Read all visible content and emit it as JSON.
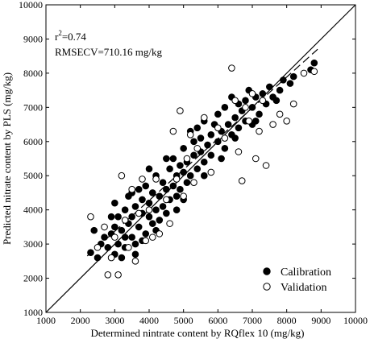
{
  "chart_data": {
    "type": "scatter",
    "title": "",
    "xlabel": "Determined nintrate content by RQflex 10 (mg/kg)",
    "ylabel": "Predicted nitrate content by PLS (mg/kg)",
    "xlim": [
      1000,
      10000
    ],
    "ylim": [
      1000,
      10000
    ],
    "xticks": [
      1000,
      2000,
      3000,
      4000,
      5000,
      6000,
      7000,
      8000,
      9000,
      10000
    ],
    "yticks": [
      1000,
      2000,
      3000,
      4000,
      5000,
      6000,
      7000,
      8000,
      9000,
      10000
    ],
    "grid": false,
    "legend_position": "bottom-right",
    "annotations": {
      "r2_base": "r",
      "r2_sup": "2",
      "r2_value": "=0.74",
      "rmsecv": "RMSECV=710.16 mg/kg"
    },
    "reference_lines": [
      {
        "style": "solid",
        "x": [
          1000,
          10000
        ],
        "y": [
          1000,
          10000
        ]
      },
      {
        "style": "dashed",
        "x": [
          2200,
          8900
        ],
        "y": [
          2650,
          8700
        ]
      }
    ],
    "series": [
      {
        "name": "Calibration",
        "marker": "filled-circle",
        "color": "#000000",
        "points": [
          [
            2300,
            2750
          ],
          [
            2400,
            3400
          ],
          [
            2500,
            2600
          ],
          [
            2600,
            3000
          ],
          [
            2700,
            3200
          ],
          [
            2800,
            2900
          ],
          [
            2900,
            3300
          ],
          [
            3000,
            2700
          ],
          [
            3000,
            3500
          ],
          [
            3100,
            3000
          ],
          [
            3100,
            3800
          ],
          [
            3200,
            2600
          ],
          [
            3200,
            3400
          ],
          [
            3300,
            4000
          ],
          [
            3300,
            2900
          ],
          [
            3400,
            3600
          ],
          [
            3400,
            4400
          ],
          [
            3500,
            3200
          ],
          [
            3500,
            3800
          ],
          [
            3600,
            4100
          ],
          [
            3600,
            3000
          ],
          [
            3700,
            4600
          ],
          [
            3700,
            3500
          ],
          [
            3800,
            3900
          ],
          [
            3800,
            4300
          ],
          [
            3900,
            3300
          ],
          [
            3900,
            4700
          ],
          [
            4000,
            3800
          ],
          [
            4000,
            4200
          ],
          [
            4100,
            3600
          ],
          [
            4100,
            4500
          ],
          [
            4200,
            4000
          ],
          [
            4200,
            5000
          ],
          [
            4300,
            3700
          ],
          [
            4300,
            4400
          ],
          [
            4400,
            4100
          ],
          [
            4400,
            4800
          ],
          [
            4500,
            3900
          ],
          [
            4500,
            4600
          ],
          [
            4600,
            5200
          ],
          [
            4600,
            4300
          ],
          [
            4700,
            4700
          ],
          [
            4700,
            5500
          ],
          [
            4800,
            4400
          ],
          [
            4800,
            5000
          ],
          [
            4900,
            5300
          ],
          [
            4900,
            4600
          ],
          [
            5000,
            5100
          ],
          [
            5000,
            5800
          ],
          [
            5100,
            4800
          ],
          [
            5100,
            5400
          ],
          [
            5200,
            6300
          ],
          [
            5200,
            5000
          ],
          [
            5300,
            5600
          ],
          [
            5300,
            6000
          ],
          [
            5400,
            5200
          ],
          [
            5400,
            6400
          ],
          [
            5500,
            5700
          ],
          [
            5500,
            6100
          ],
          [
            5600,
            5400
          ],
          [
            5600,
            6600
          ],
          [
            5700,
            5900
          ],
          [
            5800,
            6200
          ],
          [
            5800,
            5600
          ],
          [
            5900,
            6500
          ],
          [
            6000,
            6000
          ],
          [
            6000,
            6800
          ],
          [
            6100,
            6300
          ],
          [
            6200,
            5800
          ],
          [
            6200,
            7000
          ],
          [
            6300,
            6500
          ],
          [
            6400,
            6200
          ],
          [
            6400,
            7300
          ],
          [
            6500,
            6700
          ],
          [
            6600,
            6400
          ],
          [
            6600,
            7100
          ],
          [
            6700,
            6900
          ],
          [
            6800,
            7200
          ],
          [
            6800,
            6600
          ],
          [
            6900,
            7500
          ],
          [
            7000,
            7000
          ],
          [
            7000,
            6500
          ],
          [
            7100,
            7300
          ],
          [
            7200,
            6800
          ],
          [
            7300,
            7400
          ],
          [
            7400,
            7100
          ],
          [
            7500,
            7600
          ],
          [
            7600,
            7300
          ],
          [
            7700,
            7200
          ],
          [
            7800,
            7500
          ],
          [
            7900,
            7800
          ],
          [
            8100,
            7700
          ],
          [
            8200,
            7900
          ],
          [
            8700,
            8100
          ],
          [
            8800,
            8300
          ],
          [
            3000,
            4200
          ],
          [
            3500,
            4500
          ],
          [
            4000,
            5200
          ],
          [
            4500,
            5500
          ],
          [
            3800,
            3100
          ],
          [
            4200,
            3400
          ],
          [
            3600,
            2700
          ],
          [
            3300,
            3200
          ],
          [
            2900,
            3800
          ],
          [
            4800,
            4000
          ],
          [
            5600,
            5000
          ],
          [
            6100,
            5500
          ],
          [
            6500,
            6100
          ],
          [
            7100,
            6600
          ],
          [
            5000,
            4300
          ]
        ]
      },
      {
        "name": "Validation",
        "marker": "open-circle",
        "color": "#000000",
        "points": [
          [
            2300,
            3800
          ],
          [
            2500,
            2900
          ],
          [
            2700,
            3500
          ],
          [
            2800,
            2100
          ],
          [
            2900,
            2600
          ],
          [
            3000,
            3200
          ],
          [
            3100,
            2100
          ],
          [
            3200,
            5000
          ],
          [
            3300,
            3700
          ],
          [
            3400,
            2900
          ],
          [
            3500,
            4600
          ],
          [
            3600,
            2500
          ],
          [
            3700,
            3900
          ],
          [
            3800,
            4900
          ],
          [
            3900,
            3100
          ],
          [
            4000,
            4000
          ],
          [
            4100,
            3200
          ],
          [
            4200,
            4900
          ],
          [
            4300,
            3300
          ],
          [
            4500,
            4300
          ],
          [
            4600,
            3600
          ],
          [
            4700,
            6300
          ],
          [
            4800,
            4900
          ],
          [
            4900,
            6900
          ],
          [
            5000,
            4400
          ],
          [
            5100,
            5500
          ],
          [
            5200,
            6200
          ],
          [
            5300,
            4800
          ],
          [
            5400,
            5800
          ],
          [
            5600,
            6700
          ],
          [
            5800,
            5100
          ],
          [
            6000,
            6400
          ],
          [
            6200,
            6100
          ],
          [
            6400,
            8150
          ],
          [
            6500,
            7200
          ],
          [
            6600,
            5700
          ],
          [
            6700,
            4850
          ],
          [
            6800,
            7000
          ],
          [
            6900,
            6600
          ],
          [
            7000,
            7400
          ],
          [
            7100,
            5500
          ],
          [
            7200,
            6300
          ],
          [
            7300,
            7200
          ],
          [
            7400,
            5300
          ],
          [
            7600,
            6500
          ],
          [
            7800,
            6800
          ],
          [
            8000,
            6600
          ],
          [
            8200,
            7100
          ],
          [
            8500,
            8000
          ],
          [
            8800,
            8050
          ]
        ]
      }
    ]
  }
}
